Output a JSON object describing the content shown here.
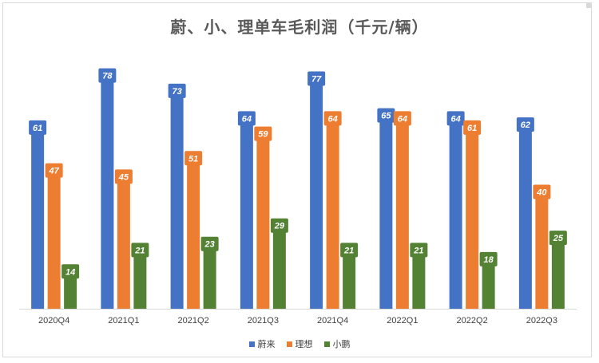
{
  "chart_data": {
    "type": "bar",
    "title": "蔚、小、理单车毛利润（千元/辆）",
    "categories": [
      "2020Q4",
      "2021Q1",
      "2021Q2",
      "2021Q3",
      "2021Q4",
      "2022Q1",
      "2022Q2",
      "2022Q3"
    ],
    "series": [
      {
        "name": "蔚来",
        "color": "#4472c4",
        "values": [
          61,
          78,
          73,
          64,
          77,
          65,
          64,
          62
        ]
      },
      {
        "name": "理想",
        "color": "#ed7d31",
        "values": [
          47,
          45,
          51,
          59,
          64,
          64,
          61,
          40
        ]
      },
      {
        "name": "小鹏",
        "color": "#548235",
        "values": [
          14,
          21,
          23,
          29,
          21,
          21,
          18,
          25
        ]
      }
    ],
    "ylim": [
      0,
      80
    ],
    "grid": false,
    "legend_position": "bottom"
  }
}
